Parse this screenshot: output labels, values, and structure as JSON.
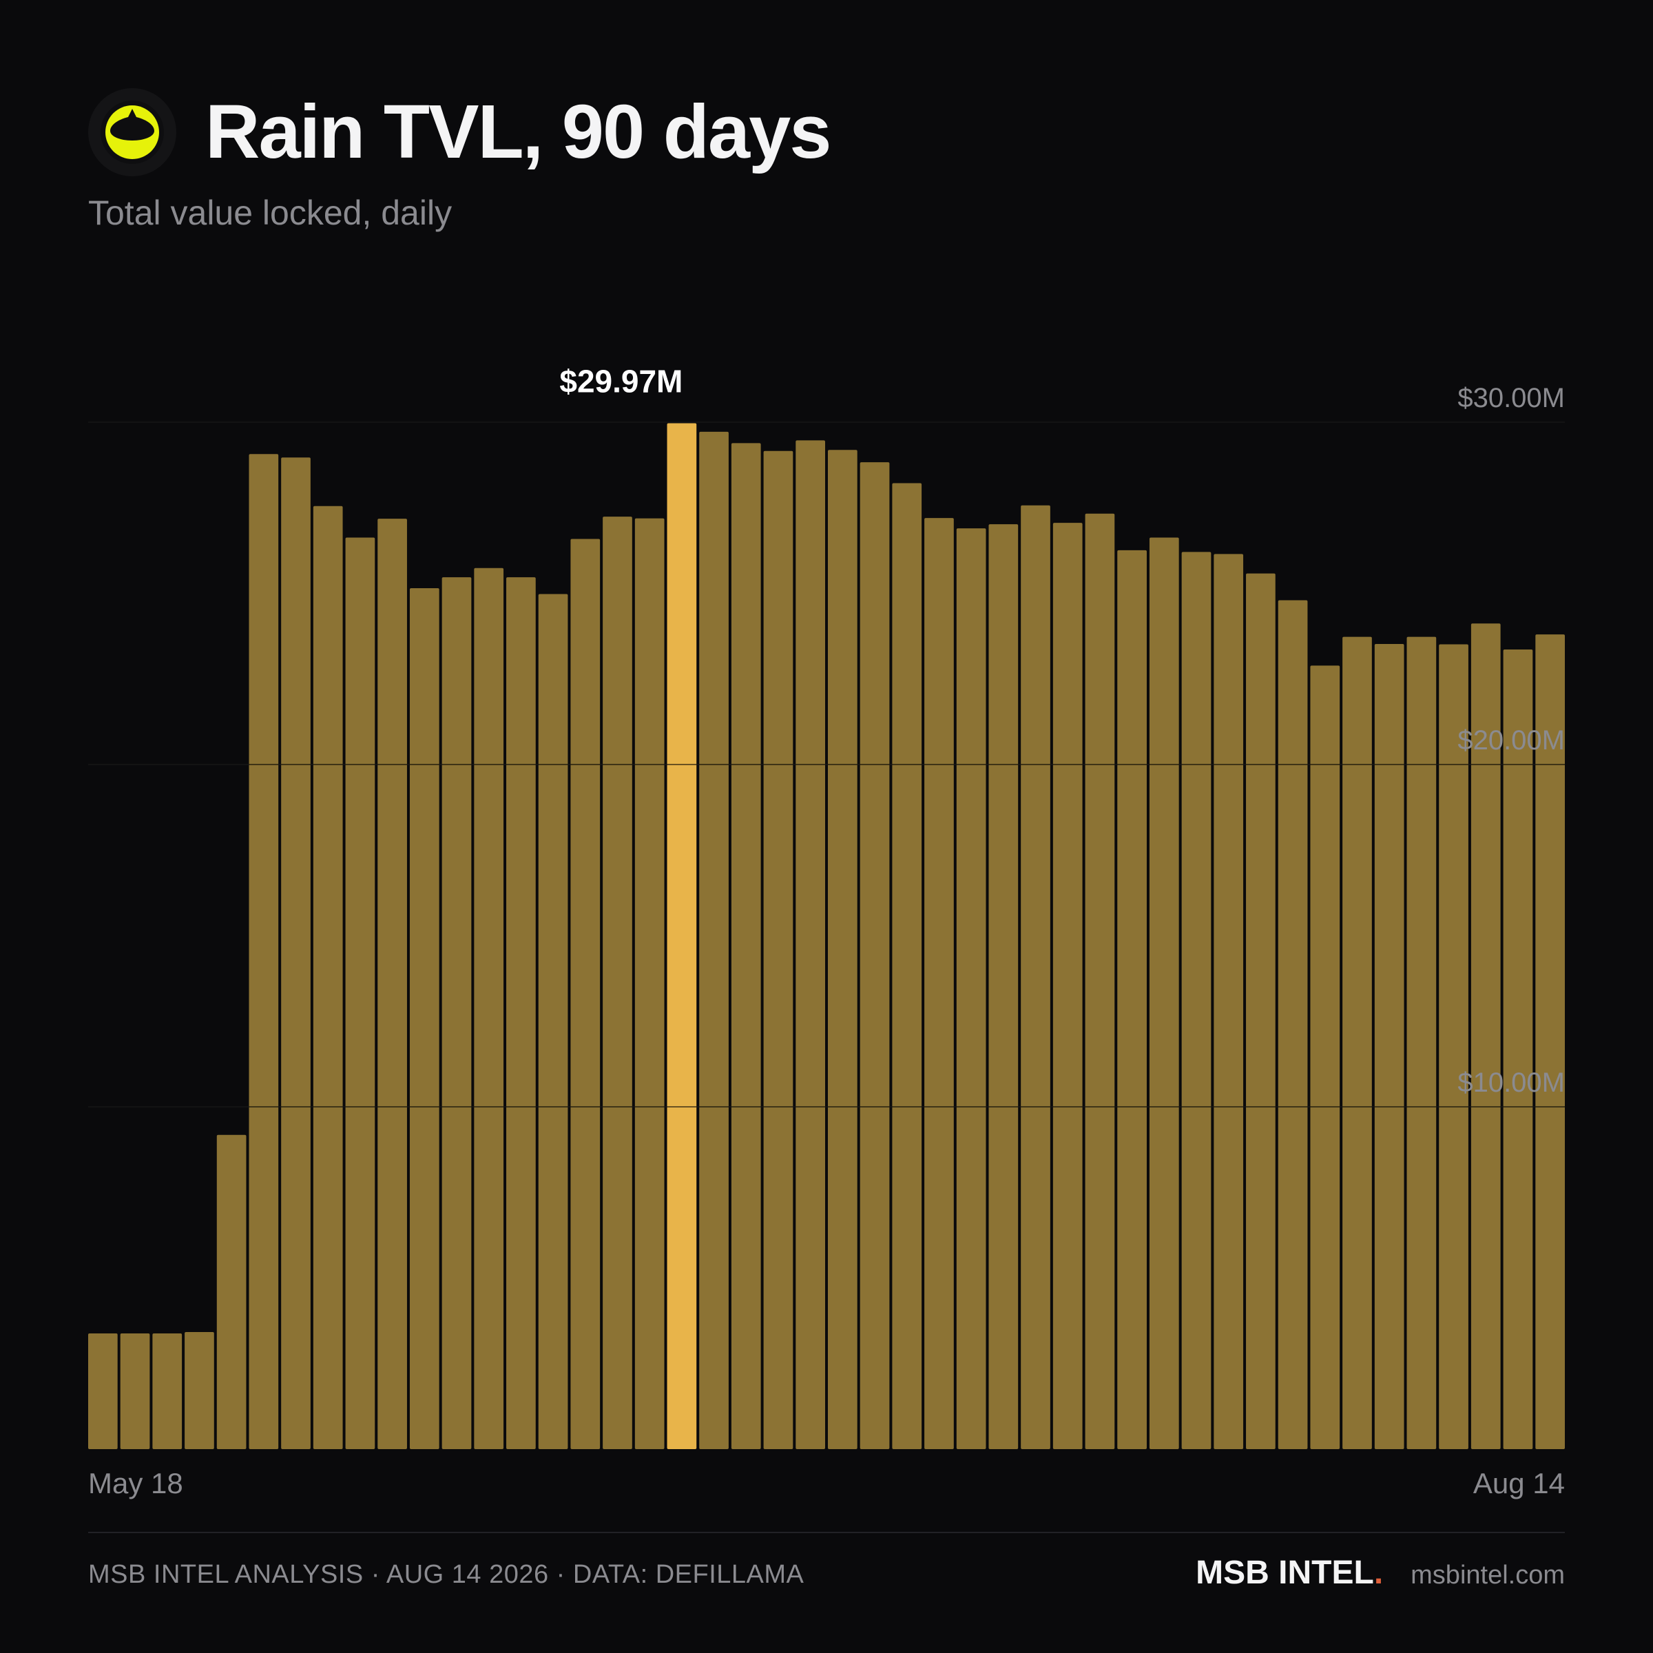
{
  "header": {
    "title": "Rain TVL, 90 days",
    "subtitle": "Total value locked, daily",
    "logo_color": "#e6f20a"
  },
  "footer": {
    "left": "MSB INTEL ANALYSIS · AUG 14 2026 · DATA: DEFILLAMA",
    "brand": "MSB INTEL",
    "brand_dot": ".",
    "brand_dot_color": "#e0603a",
    "site": "msbintel.com"
  },
  "colors": {
    "bar": "#8c7334",
    "bar_highlight": "#e8b44a",
    "grid": "#2a2a2e",
    "axis_text": "#8b8b90"
  },
  "chart_data": {
    "type": "bar",
    "x_start_label": "May 18",
    "x_end_label": "Aug 14",
    "ylim": [
      0,
      30
    ],
    "y_ticks": [
      {
        "value": 10,
        "label": "$10.00M"
      },
      {
        "value": 20,
        "label": "$20.00M"
      },
      {
        "value": 30,
        "label": "$30.00M"
      }
    ],
    "unit": "$M",
    "highlight_index": 18,
    "highlight_label": "$29.97M",
    "values": [
      3.38,
      3.38,
      3.38,
      3.42,
      9.18,
      29.07,
      28.97,
      27.55,
      26.63,
      27.18,
      25.15,
      25.47,
      25.74,
      25.47,
      24.98,
      26.59,
      27.24,
      27.19,
      29.97,
      29.72,
      29.39,
      29.16,
      29.47,
      29.19,
      28.83,
      28.22,
      27.2,
      26.9,
      27.02,
      27.57,
      27.06,
      27.33,
      26.26,
      26.63,
      26.21,
      26.15,
      25.58,
      24.8,
      22.89,
      23.73,
      23.52,
      23.73,
      23.51,
      24.12,
      23.36,
      23.8
    ]
  }
}
